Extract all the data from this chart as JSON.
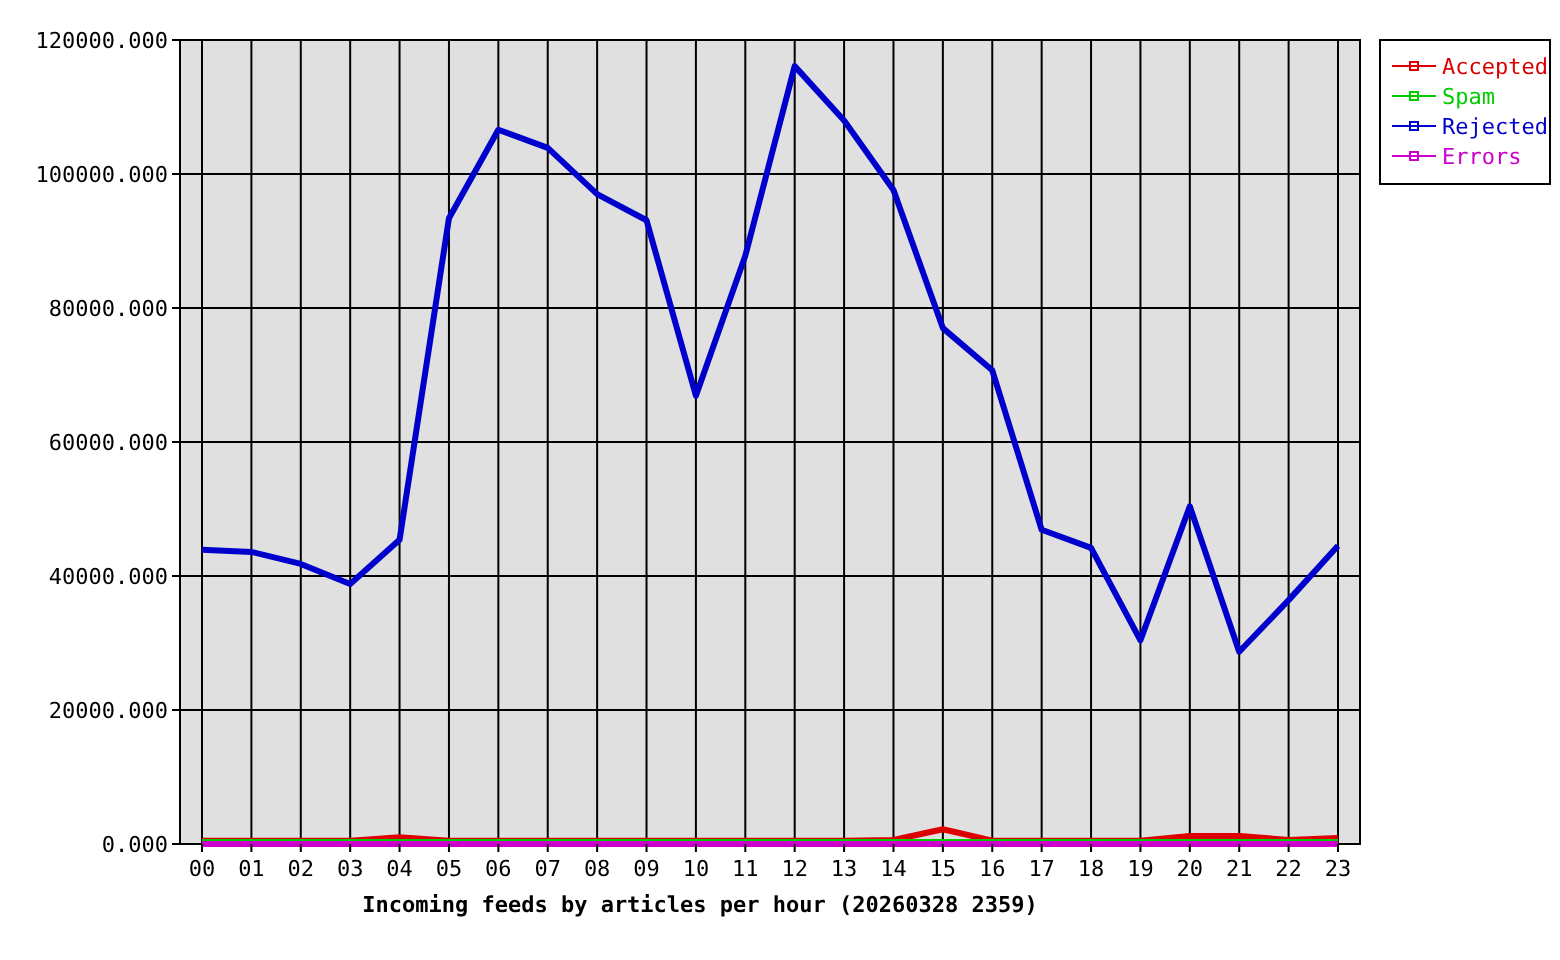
{
  "chart_data": {
    "type": "line",
    "xlabel": "Incoming feeds by articles per hour (20260328 2359)",
    "categories": [
      "00",
      "01",
      "02",
      "03",
      "04",
      "05",
      "06",
      "07",
      "08",
      "09",
      "10",
      "11",
      "12",
      "13",
      "14",
      "15",
      "16",
      "17",
      "18",
      "19",
      "20",
      "21",
      "22",
      "23"
    ],
    "series": [
      {
        "name": "Accepted",
        "color": "#dd0000",
        "values": [
          500,
          500,
          500,
          500,
          1000,
          500,
          500,
          500,
          500,
          500,
          500,
          500,
          500,
          500,
          600,
          2200,
          500,
          500,
          500,
          500,
          1200,
          1200,
          600,
          900
        ]
      },
      {
        "name": "Spam",
        "color": "#00cc00",
        "values": [
          300,
          300,
          300,
          300,
          300,
          300,
          300,
          300,
          300,
          300,
          300,
          300,
          300,
          300,
          300,
          300,
          300,
          300,
          300,
          300,
          300,
          300,
          300,
          300
        ]
      },
      {
        "name": "Rejected",
        "color": "#0000cc",
        "values": [
          43900,
          43600,
          41800,
          38800,
          45400,
          93400,
          106600,
          103900,
          97000,
          93100,
          66900,
          87800,
          116100,
          108000,
          97600,
          77000,
          70700,
          46900,
          44200,
          30400,
          50400,
          28700,
          36400,
          44500
        ]
      },
      {
        "name": "Errors",
        "color": "#cc00cc",
        "values": [
          0,
          0,
          0,
          0,
          0,
          0,
          0,
          0,
          0,
          0,
          0,
          0,
          0,
          0,
          0,
          0,
          0,
          0,
          0,
          0,
          0,
          0,
          0,
          0
        ]
      }
    ],
    "ylim": [
      0,
      120000
    ],
    "yticks": [
      {
        "value": 0,
        "label": "0.000"
      },
      {
        "value": 20000,
        "label": "20000.000"
      },
      {
        "value": 40000,
        "label": "40000.000"
      },
      {
        "value": 60000,
        "label": "60000.000"
      },
      {
        "value": 80000,
        "label": "80000.000"
      },
      {
        "value": 100000,
        "label": "100000.000"
      },
      {
        "value": 120000,
        "label": "120000.000"
      }
    ],
    "grid": true,
    "legend": "top right"
  }
}
